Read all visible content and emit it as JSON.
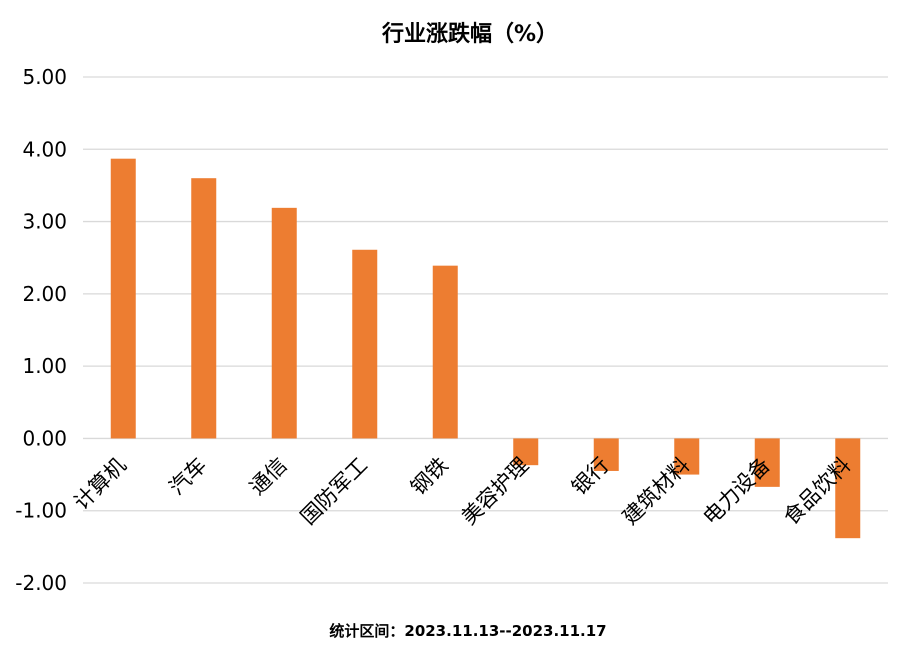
{
  "chart_data": {
    "type": "bar",
    "title": "行业涨跌幅（%）",
    "categories": [
      "计算机",
      "汽车",
      "通信",
      "国防军工",
      "钢铁",
      "美容护理",
      "银行",
      "建筑材料",
      "电力设备",
      "食品饮料"
    ],
    "values": [
      3.87,
      3.6,
      3.19,
      2.61,
      2.39,
      -0.37,
      -0.45,
      -0.5,
      -0.67,
      -1.38
    ],
    "ylim": [
      -2,
      5
    ],
    "yticks": [
      "5.00",
      "4.00",
      "3.00",
      "2.00",
      "1.00",
      "0.00",
      "-1.00",
      "-2.00"
    ],
    "ytick_values": [
      5,
      4,
      3,
      2,
      1,
      0,
      -1,
      -2
    ],
    "xlabel": "",
    "ylabel": "",
    "grid": true,
    "bar_color": "#ED7D31",
    "grid_color": "#D9D9D9",
    "footer": "统计区间：2023.11.13--2023.11.17"
  }
}
